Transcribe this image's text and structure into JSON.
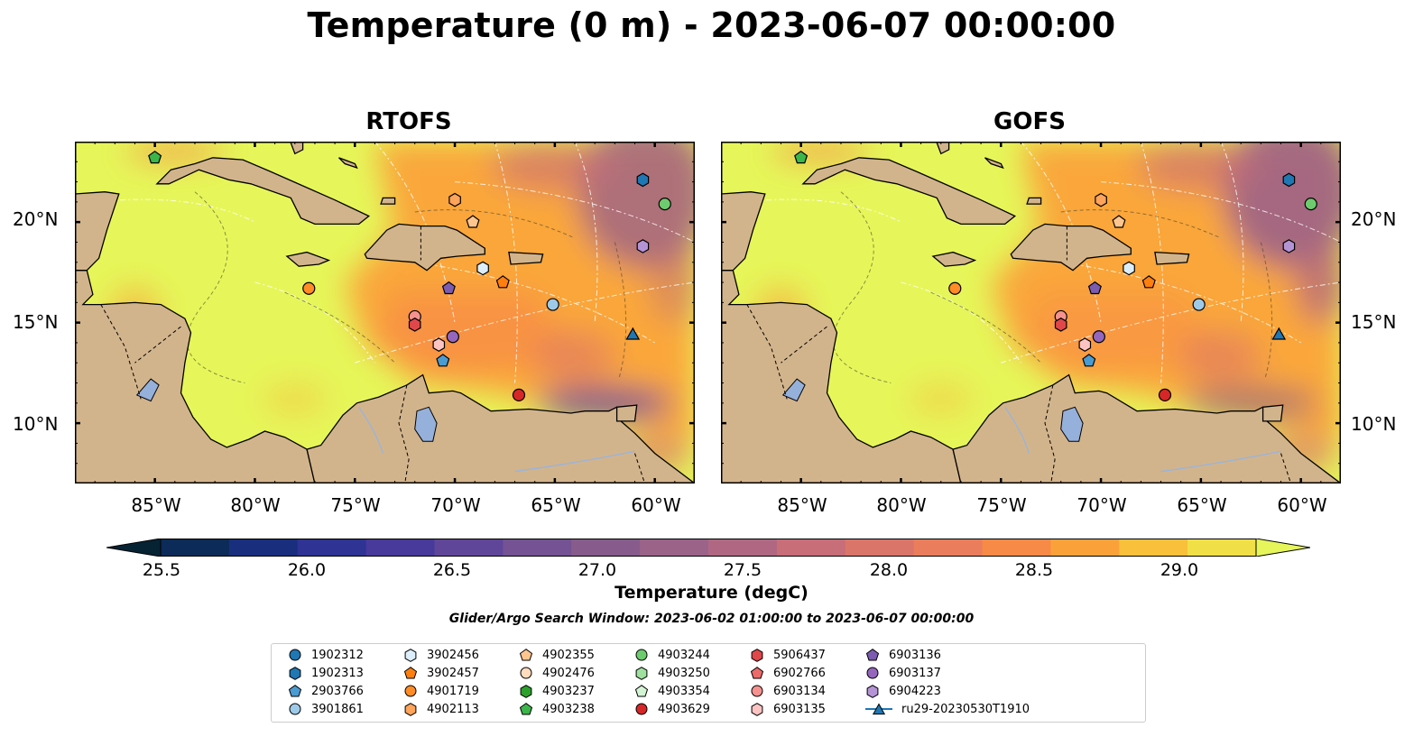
{
  "title": "Temperature (0 m) - 2023-06-07 00:00:00",
  "panels": [
    {
      "title": "RTOFS",
      "variant": "rtofs"
    },
    {
      "title": "GOFS",
      "variant": "gofs"
    }
  ],
  "map_extent": {
    "lon_min": -89,
    "lon_max": -58,
    "lat_min": 7,
    "lat_max": 24
  },
  "lat_ticks": [
    {
      "value": 20,
      "label": "20°N"
    },
    {
      "value": 15,
      "label": "15°N"
    },
    {
      "value": 10,
      "label": "10°N"
    }
  ],
  "lon_ticks": [
    {
      "value": -85,
      "label": "85°W"
    },
    {
      "value": -80,
      "label": "80°W"
    },
    {
      "value": -75,
      "label": "75°W"
    },
    {
      "value": -70,
      "label": "70°W"
    },
    {
      "value": -65,
      "label": "65°W"
    },
    {
      "value": -60,
      "label": "60°W"
    }
  ],
  "colorbar": {
    "label": "Temperature (degC)",
    "range": [
      25.25,
      29.35
    ],
    "ticks": [
      "25.5",
      "26.0",
      "26.5",
      "27.0",
      "27.5",
      "28.0",
      "28.5",
      "29.0"
    ],
    "colors": [
      "#062333",
      "#0c2b58",
      "#192f7e",
      "#2e3394",
      "#483a9b",
      "#5f4699",
      "#745293",
      "#875c8c",
      "#9b6388",
      "#b06882",
      "#c76e79",
      "#da7569",
      "#ea7d5b",
      "#f78a47",
      "#fba13a",
      "#f8c03b",
      "#f1df48",
      "#e6f65a"
    ],
    "extend": "both"
  },
  "search_window": "Glider/Argo Search Window: 2023-06-02 01:00:00 to 2023-06-07 00:00:00",
  "legend": [
    {
      "label": "1902312",
      "marker": "circle",
      "color": "#1f77b4"
    },
    {
      "label": "1902313",
      "marker": "hexagon",
      "color": "#1f77b4"
    },
    {
      "label": "2903766",
      "marker": "pentagon",
      "color": "#4a9bd1"
    },
    {
      "label": "3901861",
      "marker": "circle",
      "color": "#9ecae9"
    },
    {
      "label": "3902456",
      "marker": "hexagon",
      "color": "#dbeefa"
    },
    {
      "label": "3902457",
      "marker": "pentagon",
      "color": "#ff7f0e"
    },
    {
      "label": "4901719",
      "marker": "circle",
      "color": "#ff8c27"
    },
    {
      "label": "4902113",
      "marker": "hexagon",
      "color": "#ffa45a"
    },
    {
      "label": "4902355",
      "marker": "pentagon",
      "color": "#ffc58f"
    },
    {
      "label": "4902476",
      "marker": "circle",
      "color": "#ffdcbd"
    },
    {
      "label": "4903237",
      "marker": "hexagon",
      "color": "#2ca02c"
    },
    {
      "label": "4903238",
      "marker": "pentagon",
      "color": "#3cb54a"
    },
    {
      "label": "4903244",
      "marker": "circle",
      "color": "#6dcc6d"
    },
    {
      "label": "4903250",
      "marker": "hexagon",
      "color": "#9fe09f"
    },
    {
      "label": "4903354",
      "marker": "pentagon",
      "color": "#d4f5d4"
    },
    {
      "label": "4903629",
      "marker": "circle",
      "color": "#d62728"
    },
    {
      "label": "5906437",
      "marker": "hexagon",
      "color": "#e0474a"
    },
    {
      "label": "6902766",
      "marker": "pentagon",
      "color": "#ec6a6a"
    },
    {
      "label": "6903134",
      "marker": "circle",
      "color": "#f5928f"
    },
    {
      "label": "6903135",
      "marker": "hexagon",
      "color": "#fbc4c2"
    },
    {
      "label": "6903136",
      "marker": "pentagon",
      "color": "#7b5cb0"
    },
    {
      "label": "6903137",
      "marker": "circle",
      "color": "#9467bd"
    },
    {
      "label": "6904223",
      "marker": "hexagon",
      "color": "#b594d6"
    },
    {
      "label": "ru29-20230530T1910",
      "marker": "triangle-line",
      "color": "#1f77b4"
    }
  ],
  "floats": [
    {
      "id": "4903238",
      "lon": -85.0,
      "lat": 23.2,
      "marker": "pentagon",
      "color": "#3cb54a"
    },
    {
      "id": "1902313",
      "lon": -60.6,
      "lat": 22.1,
      "marker": "hexagon",
      "color": "#1f77b4"
    },
    {
      "id": "4903244",
      "lon": -59.5,
      "lat": 20.9,
      "marker": "circle",
      "color": "#6dcc6d"
    },
    {
      "id": "6904223",
      "lon": -60.6,
      "lat": 18.8,
      "marker": "hexagon",
      "color": "#b594d6"
    },
    {
      "id": "4902113",
      "lon": -70.0,
      "lat": 21.1,
      "marker": "hexagon",
      "color": "#ffa45a"
    },
    {
      "id": "4902355",
      "lon": -69.1,
      "lat": 20.0,
      "marker": "pentagon",
      "color": "#ffc58f"
    },
    {
      "id": "3902456",
      "lon": -68.6,
      "lat": 17.7,
      "marker": "hexagon",
      "color": "#dbeefa"
    },
    {
      "id": "3902457",
      "lon": -67.6,
      "lat": 17.0,
      "marker": "pentagon",
      "color": "#ff7f0e"
    },
    {
      "id": "6903136",
      "lon": -70.3,
      "lat": 16.7,
      "marker": "pentagon",
      "color": "#7b5cb0"
    },
    {
      "id": "4901719",
      "lon": -77.3,
      "lat": 16.7,
      "marker": "circle",
      "color": "#ff8c27"
    },
    {
      "id": "3901861",
      "lon": -65.1,
      "lat": 15.9,
      "marker": "circle",
      "color": "#9ecae9"
    },
    {
      "id": "6903134",
      "lon": -72.0,
      "lat": 15.3,
      "marker": "circle",
      "color": "#f5928f"
    },
    {
      "id": "5906437",
      "lon": -72.0,
      "lat": 14.9,
      "marker": "hexagon",
      "color": "#e0474a"
    },
    {
      "id": "6903137",
      "lon": -70.1,
      "lat": 14.3,
      "marker": "circle",
      "color": "#9467bd"
    },
    {
      "id": "6903135",
      "lon": -70.8,
      "lat": 13.9,
      "marker": "hexagon",
      "color": "#fbc4c2"
    },
    {
      "id": "2903766",
      "lon": -70.6,
      "lat": 13.1,
      "marker": "pentagon",
      "color": "#4a9bd1"
    },
    {
      "id": "4903629",
      "lon": -66.8,
      "lat": 11.4,
      "marker": "circle",
      "color": "#d62728"
    },
    {
      "id": "ru29-20230530T1910",
      "lon": -61.1,
      "lat": 14.4,
      "marker": "triangle",
      "color": "#1f77b4"
    }
  ]
}
